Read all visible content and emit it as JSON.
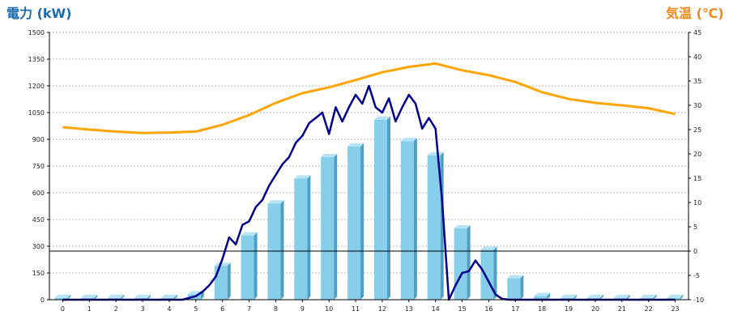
{
  "chart_data": {
    "type": "bar",
    "left_axis_title": "電力 (kW)",
    "right_axis_title": "気温 (℃)",
    "xlabel": "",
    "categories": [
      "0",
      "1",
      "2",
      "3",
      "4",
      "5",
      "6",
      "7",
      "8",
      "9",
      "10",
      "11",
      "12",
      "13",
      "14",
      "15",
      "16",
      "17",
      "18",
      "19",
      "20",
      "21",
      "22",
      "23"
    ],
    "ylim_left": [
      0,
      1500
    ],
    "ylim_right": [
      -10,
      45
    ],
    "yticks_left": [
      0,
      150,
      300,
      450,
      600,
      750,
      900,
      1050,
      1200,
      1350,
      1500
    ],
    "yticks_right": [
      -10,
      -5,
      0,
      5,
      10,
      15,
      20,
      25,
      30,
      35,
      40,
      45
    ],
    "grid": true,
    "reference_line_right": 0,
    "bar_color": "#87ceeb",
    "bar_side_color": "#4f9ec4",
    "bar_top_color": "#b6e3f6",
    "power_line_color": "#00008b",
    "temp_line_color": "#ffa500",
    "series": [
      {
        "type": "bar",
        "axis": "left",
        "values": [
          10,
          10,
          10,
          10,
          10,
          30,
          190,
          360,
          540,
          680,
          800,
          860,
          1010,
          890,
          810,
          400,
          280,
          120,
          20,
          10,
          10,
          10,
          10,
          10
        ]
      },
      {
        "type": "line",
        "axis": "left",
        "x": [
          0,
          0.5,
          1,
          1.5,
          2,
          2.5,
          3,
          3.5,
          4,
          4.5,
          5,
          5.25,
          5.5,
          5.75,
          6,
          6.25,
          6.5,
          6.75,
          7,
          7.25,
          7.5,
          7.75,
          8,
          8.25,
          8.5,
          8.75,
          9,
          9.25,
          9.5,
          9.75,
          10,
          10.25,
          10.5,
          10.75,
          11,
          11.25,
          11.5,
          11.75,
          12,
          12.25,
          12.5,
          12.75,
          13,
          13.25,
          13.5,
          13.75,
          14,
          14.25,
          14.5,
          14.75,
          15,
          15.25,
          15.5,
          15.75,
          16,
          16.25,
          16.5,
          16.75,
          17,
          17.25,
          17.5,
          17.75,
          18,
          18.5,
          19,
          20,
          21,
          22,
          23
        ],
        "values": [
          0,
          0,
          0,
          0,
          0,
          0,
          0,
          0,
          0,
          0,
          20,
          45,
          80,
          130,
          230,
          350,
          310,
          420,
          440,
          520,
          560,
          640,
          700,
          760,
          800,
          880,
          920,
          990,
          1020,
          1050,
          930,
          1080,
          1000,
          1080,
          1150,
          1100,
          1200,
          1080,
          1050,
          1130,
          1000,
          1080,
          1150,
          1100,
          960,
          1020,
          960,
          550,
          0,
          80,
          150,
          160,
          220,
          170,
          100,
          30,
          5,
          0,
          0,
          0,
          0,
          0,
          0,
          0,
          0,
          0,
          0,
          0,
          0
        ],
        "values_note_kind": "power"
      },
      {
        "type": "line",
        "axis": "right",
        "x": [
          0,
          1,
          2,
          3,
          4,
          5,
          6,
          7,
          8,
          9,
          10,
          11,
          12,
          13,
          14,
          15,
          16,
          17,
          18,
          19,
          20,
          21,
          22,
          23
        ],
        "values": [
          25.5,
          25,
          24.6,
          24.3,
          24.4,
          24.6,
          26,
          28,
          30.5,
          32.5,
          33.7,
          35.2,
          36.8,
          37.9,
          38.6,
          37.2,
          36.2,
          34.8,
          32.7,
          31.3,
          30.5,
          30,
          29.4,
          28.2
        ]
      }
    ]
  }
}
